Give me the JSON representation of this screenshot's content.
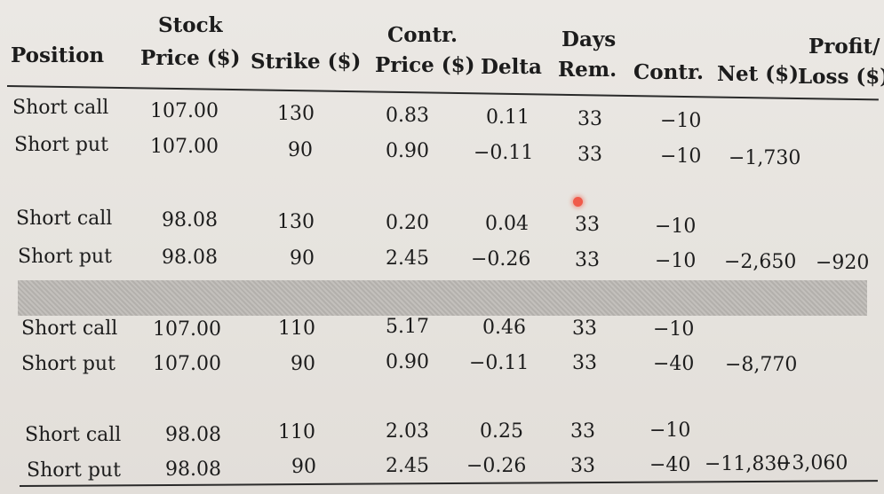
{
  "headers": {
    "position": "Position",
    "stock_price_1": "Stock",
    "stock_price_2": "Price ($)",
    "strike": "Strike ($)",
    "contr_price_1": "Contr.",
    "contr_price_2": "Price ($)",
    "delta": "Delta",
    "days_rem_1": "Days",
    "days_rem_2": "Rem.",
    "contracts": "Contr.",
    "net": "Net ($)",
    "profit_loss_1": "Profit/",
    "profit_loss_2": "Loss ($)"
  },
  "rows": [
    {
      "position": "Short call",
      "stock_price": "107.00",
      "strike": "130",
      "contr_price": "0.83",
      "delta": "0.11",
      "days_rem": "33",
      "contracts": "−10",
      "net": "",
      "profit_loss": ""
    },
    {
      "position": "Short put",
      "stock_price": "107.00",
      "strike": "90",
      "contr_price": "0.90",
      "delta": "−0.11",
      "days_rem": "33",
      "contracts": "−10",
      "net": "−1,730",
      "profit_loss": ""
    },
    {
      "position": "Short call",
      "stock_price": "98.08",
      "strike": "130",
      "contr_price": "0.20",
      "delta": "0.04",
      "days_rem": "33",
      "contracts": "−10",
      "net": "",
      "profit_loss": ""
    },
    {
      "position": "Short put",
      "stock_price": "98.08",
      "strike": "90",
      "contr_price": "2.45",
      "delta": "−0.26",
      "days_rem": "33",
      "contracts": "−10",
      "net": "−2,650",
      "profit_loss": "−920"
    },
    {
      "position": "Short call",
      "stock_price": "107.00",
      "strike": "110",
      "contr_price": "5.17",
      "delta": "0.46",
      "days_rem": "33",
      "contracts": "−10",
      "net": "",
      "profit_loss": ""
    },
    {
      "position": "Short put",
      "stock_price": "107.00",
      "strike": "90",
      "contr_price": "0.90",
      "delta": "−0.11",
      "days_rem": "33",
      "contracts": "−40",
      "net": "−8,770",
      "profit_loss": ""
    },
    {
      "position": "Short call",
      "stock_price": "98.08",
      "strike": "110",
      "contr_price": "2.03",
      "delta": "0.25",
      "days_rem": "33",
      "contracts": "−10",
      "net": "",
      "profit_loss": ""
    },
    {
      "position": "Short put",
      "stock_price": "98.08",
      "strike": "90",
      "contr_price": "2.45",
      "delta": "−0.26",
      "days_rem": "33",
      "contracts": "−40",
      "net": "−11,830",
      "profit_loss": "−3,060"
    }
  ],
  "colors": {
    "paper": "#e9e6e2",
    "ink": "#1c1c1c",
    "band": "#b8b5b1",
    "marker": "#f05a4a"
  }
}
